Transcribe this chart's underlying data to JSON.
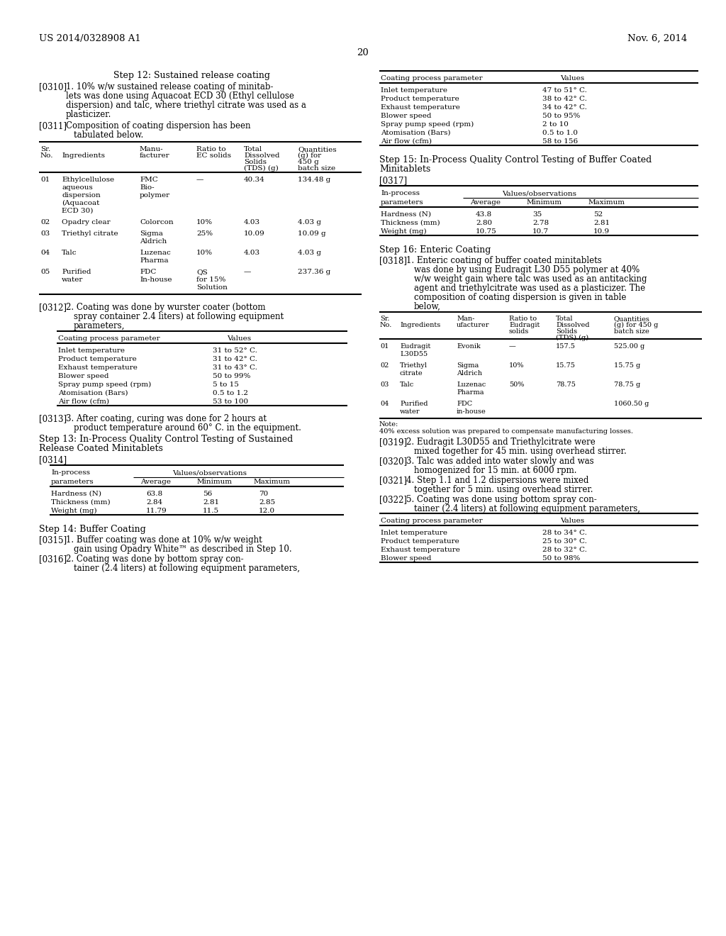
{
  "bg_color": "#ffffff",
  "header_left": "US 2014/0328908 A1",
  "header_right": "Nov. 6, 2014",
  "page_number": "20",
  "step12_title": "Step 12: Sustained release coating",
  "table1_rows": [
    [
      "01",
      "Ethylcellulose\naqueous\ndispersion\n(Aquacoat\nECD 30)",
      "FMC\nBio-\npolymer",
      "—",
      "40.34",
      "134.48 g"
    ],
    [
      "02",
      "Opadry clear",
      "Colorcon",
      "10%",
      "4.03",
      "4.03 g"
    ],
    [
      "03",
      "Triethyl citrate",
      "Sigma\nAldrich",
      "25%",
      "10.09",
      "10.09 g"
    ],
    [
      "04",
      "Talc",
      "Luzenac\nPharma",
      "10%",
      "4.03",
      "4.03 g"
    ],
    [
      "05",
      "Purified\nwater",
      "FDC\nIn-house",
      "QS\nfor 15%\nSolution",
      "—",
      "237.36 g"
    ]
  ],
  "table2_rows": [
    [
      "Inlet temperature",
      "31 to 52° C."
    ],
    [
      "Product temperature",
      "31 to 42° C."
    ],
    [
      "Exhaust temperature",
      "31 to 43° C."
    ],
    [
      "Blower speed",
      "50 to 99%"
    ],
    [
      "Spray pump speed (rpm)",
      "5 to 15"
    ],
    [
      "Atomisation (Bars)",
      "0.5 to 1.2"
    ],
    [
      "Air flow (cfm)",
      "53 to 100"
    ]
  ],
  "table3_rows": [
    [
      "Hardness (N)",
      "63.8",
      "56",
      "70"
    ],
    [
      "Thickness (mm)",
      "2.84",
      "2.81",
      "2.85"
    ],
    [
      "Weight (mg)",
      "11.79",
      "11.5",
      "12.0"
    ]
  ],
  "step14_title": "Step 14: Buffer Coating",
  "table4_rows": [
    [
      "Inlet temperature",
      "47 to 51° C."
    ],
    [
      "Product temperature",
      "38 to 42° C."
    ],
    [
      "Exhaust temperature",
      "34 to 42° C."
    ],
    [
      "Blower speed",
      "50 to 95%"
    ],
    [
      "Spray pump speed (rpm)",
      "2 to 10"
    ],
    [
      "Atomisation (Bars)",
      "0.5 to 1.0"
    ],
    [
      "Air flow (cfm)",
      "58 to 156"
    ]
  ],
  "step15_title_1": "Step 15: In-Process Quality Control Testing of Buffer Coated",
  "step15_title_2": "Minitablets",
  "table5_rows": [
    [
      "Hardness (N)",
      "43.8",
      "35",
      "52"
    ],
    [
      "Thickness (mm)",
      "2.80",
      "2.78",
      "2.81"
    ],
    [
      "Weight (mg)",
      "10.75",
      "10.7",
      "10.9"
    ]
  ],
  "step16_title": "Step 16: Enteric Coating",
  "table6_rows": [
    [
      "01",
      "Eudragit\nL30D55",
      "Evonik",
      "—",
      "157.5",
      "525.00 g"
    ],
    [
      "02",
      "Triethyl\ncitrate",
      "Sigma\nAldrich",
      "10%",
      "15.75",
      "15.75 g"
    ],
    [
      "03",
      "Talc",
      "Luzenac\nPharma",
      "50%",
      "78.75",
      "78.75 g"
    ],
    [
      "04",
      "Purified\nwater",
      "FDC\nin-house",
      "",
      "",
      "1060.50 g"
    ]
  ],
  "table6_note_1": "Note:",
  "table6_note_2": "40% excess solution was prepared to compensate manufacturing losses.",
  "table7_rows": [
    [
      "Inlet temperature",
      "28 to 34° C."
    ],
    [
      "Product temperature",
      "25 to 30° C."
    ],
    [
      "Exhaust temperature",
      "28 to 32° C."
    ],
    [
      "Blower speed",
      "50 to 98%"
    ]
  ]
}
